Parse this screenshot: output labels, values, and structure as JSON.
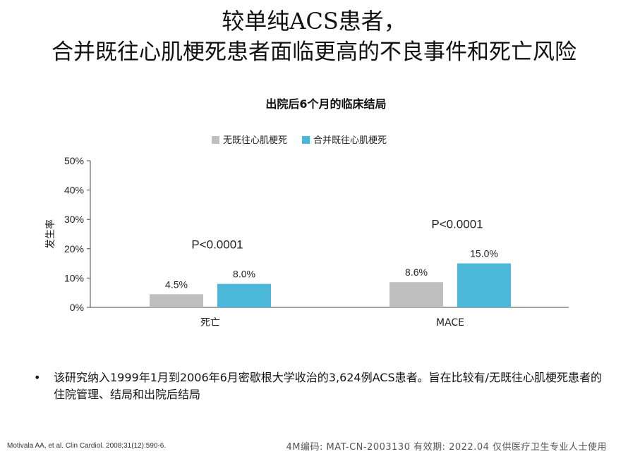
{
  "slide": {
    "title_line1": "较单纯ACS患者，",
    "title_line2": "合并既往心肌梗死患者面临更高的不良事件和死亡风险",
    "bullet_marker": "•",
    "bullet_text": "该研究纳入1999年1月到2006年6月密歇根大学收治的3,624例ACS患者。旨在比较有/无既往心肌梗死患者的住院管理、结局和出院后结局",
    "reference": "Motivala AA, et al. Clin Cardiol. 2008;31(12):590-6.",
    "footer_code": "4M编码:  MAT-CN-2003130  有效期: 2022.04  仅供医疗卫生专业人士使用"
  },
  "chart_data": {
    "type": "bar",
    "title": "出院后6个月的临床结局",
    "ylabel": "发生率",
    "xlabel": "",
    "categories": [
      "死亡",
      "MACE"
    ],
    "series": [
      {
        "name": "无既往心肌梗死",
        "values": [
          4.5,
          8.6
        ],
        "labels": [
          "4.5%",
          "8.6%"
        ],
        "color": "#bfbfbf"
      },
      {
        "name": "合并既往心肌梗死",
        "values": [
          8.0,
          15.0
        ],
        "labels": [
          "8.0%",
          "15.0%"
        ],
        "color": "#4bb8d9"
      }
    ],
    "p_values": [
      "P<0.0001",
      "P<0.0001"
    ],
    "ylim": [
      0,
      50
    ],
    "yticks": [
      0,
      10,
      20,
      30,
      40,
      50
    ],
    "ytick_labels": [
      "0%",
      "10%",
      "20%",
      "30%",
      "40%",
      "50%"
    ],
    "legend": "top-center",
    "grid": false
  }
}
